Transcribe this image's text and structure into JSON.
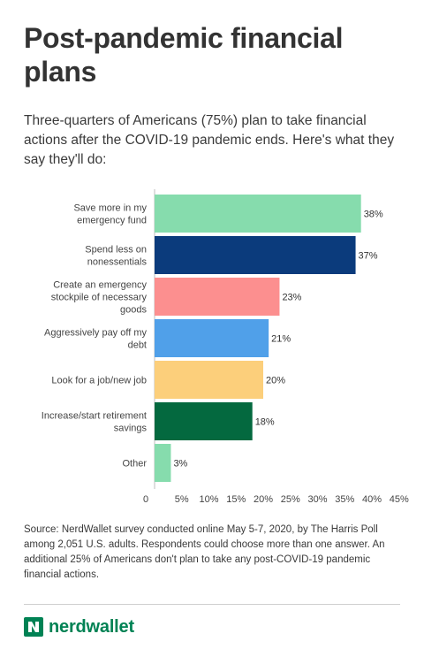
{
  "title": "Post-pandemic financial plans",
  "subtitle": "Three-quarters of Americans (75%) plan to take financial actions after the COVID-19 pandemic ends. Here's what they say they'll do:",
  "source_note": "Source: NerdWallet survey conducted online May 5-7, 2020, by The Harris Poll among 2,051 U.S. adults. Respondents could choose more than one answer. An additional 25% of Americans don't plan to take any post-COVID-19 pandemic financial actions.",
  "brand": {
    "name": "nerdwallet",
    "logo_icon": "nerdwallet-n-logo-icon",
    "color": "#008254"
  },
  "chart_data": {
    "type": "bar",
    "orientation": "horizontal",
    "title": "",
    "xlabel": "",
    "ylabel": "",
    "categories": [
      [
        "Save more in my",
        "emergency fund"
      ],
      [
        "Spend less on",
        "nonessentials"
      ],
      [
        "Create an emergency",
        "stockpile of necessary",
        "goods"
      ],
      [
        "Aggressively pay off my",
        "debt"
      ],
      [
        "Look for a job/new job"
      ],
      [
        "Increase/start retirement",
        "savings"
      ],
      [
        "Other"
      ]
    ],
    "values": [
      38,
      37,
      23,
      21,
      20,
      18,
      3
    ],
    "value_labels": [
      "38%",
      "37%",
      "23%",
      "21%",
      "20%",
      "18%",
      "3%"
    ],
    "colors": [
      "#86dcad",
      "#0b3b7c",
      "#fc8f8f",
      "#50a0e9",
      "#fccf7b",
      "#04693f",
      "#86dcad"
    ],
    "xlim": [
      0,
      45
    ],
    "xticks": [
      "0",
      "5%",
      "10%",
      "15%",
      "20%",
      "25%",
      "30%",
      "35%",
      "40%",
      "45%"
    ],
    "grid": false,
    "legend": "none"
  }
}
